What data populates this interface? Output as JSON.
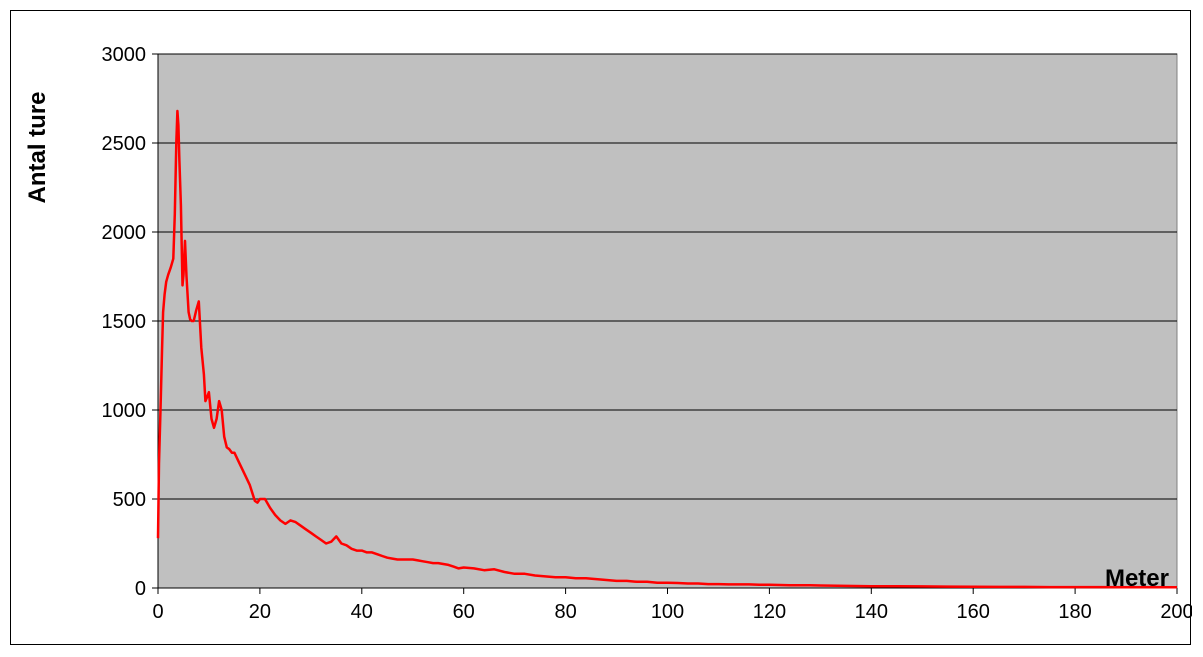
{
  "chart_data": {
    "type": "line",
    "title": "",
    "xlabel": "Meter",
    "ylabel": "Antal ture",
    "xlim": [
      0,
      200
    ],
    "ylim": [
      0,
      3000
    ],
    "x_ticks": [
      0,
      20,
      40,
      60,
      80,
      100,
      120,
      140,
      160,
      180,
      200
    ],
    "y_ticks": [
      0,
      500,
      1000,
      1500,
      2000,
      2500,
      3000
    ],
    "grid": "horizontal",
    "legend": "none",
    "colors": {
      "line": "#ff0000",
      "plot_bg": "#c0c0c0",
      "grid": "#000000"
    },
    "series": [
      {
        "x": [
          0,
          0.2,
          0.5,
          0.8,
          1,
          1.3,
          1.6,
          2,
          2.5,
          3,
          3.3,
          3.6,
          3.8,
          4,
          4.2,
          4.5,
          4.8,
          5,
          5.3,
          5.6,
          6,
          6.3,
          6.6,
          7,
          7.5,
          8,
          8.5,
          9,
          9.3,
          9.6,
          10,
          10.5,
          11,
          11.5,
          12,
          12.5,
          13,
          13.5,
          14,
          14.5,
          15,
          16,
          17,
          18,
          19,
          19.5,
          20,
          21,
          22,
          23,
          24,
          25,
          26,
          27,
          28,
          29,
          30,
          31,
          32,
          33,
          34,
          35,
          36,
          37,
          38,
          39,
          40,
          41,
          42,
          43,
          44,
          45,
          46,
          47,
          48,
          49,
          50,
          51,
          52,
          53,
          54,
          55,
          56,
          57,
          58,
          59,
          60,
          62,
          64,
          66,
          68,
          70,
          72,
          74,
          76,
          78,
          80,
          82,
          84,
          86,
          88,
          90,
          92,
          94,
          96,
          98,
          100,
          102,
          104,
          106,
          108,
          110,
          112,
          114,
          116,
          118,
          120,
          122,
          124,
          126,
          128,
          130,
          135,
          140,
          145,
          150,
          155,
          160,
          165,
          170,
          175,
          180,
          185,
          190,
          195,
          200
        ],
        "values": [
          280,
          700,
          1000,
          1350,
          1550,
          1650,
          1720,
          1760,
          1800,
          1850,
          2100,
          2500,
          2680,
          2600,
          2400,
          2150,
          1700,
          1760,
          1950,
          1750,
          1550,
          1510,
          1500,
          1500,
          1560,
          1610,
          1350,
          1200,
          1050,
          1070,
          1100,
          950,
          900,
          950,
          1050,
          1000,
          850,
          790,
          780,
          760,
          760,
          700,
          640,
          580,
          490,
          480,
          500,
          500,
          450,
          410,
          380,
          360,
          380,
          370,
          350,
          330,
          310,
          290,
          270,
          250,
          260,
          290,
          250,
          240,
          220,
          210,
          210,
          200,
          200,
          190,
          180,
          170,
          165,
          160,
          160,
          160,
          160,
          155,
          150,
          145,
          140,
          140,
          135,
          130,
          120,
          110,
          115,
          110,
          100,
          105,
          90,
          80,
          80,
          70,
          65,
          60,
          60,
          55,
          55,
          50,
          45,
          40,
          40,
          35,
          35,
          30,
          30,
          28,
          25,
          25,
          22,
          22,
          20,
          20,
          20,
          18,
          18,
          17,
          16,
          15,
          15,
          14,
          12,
          10,
          10,
          9,
          8,
          7,
          6,
          6,
          5,
          5,
          5,
          4,
          4,
          4
        ]
      }
    ]
  }
}
